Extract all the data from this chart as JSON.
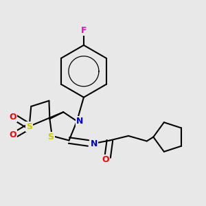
{
  "background_color": "#e8e8e8",
  "bond_color": "#000000",
  "bond_width": 1.5,
  "atom_colors": {
    "N": "#0000cd",
    "S": "#cccc00",
    "O": "#ff0000",
    "F": "#ff00cc",
    "C": "#000000"
  },
  "figsize": [
    3.0,
    3.0
  ],
  "dpi": 100
}
